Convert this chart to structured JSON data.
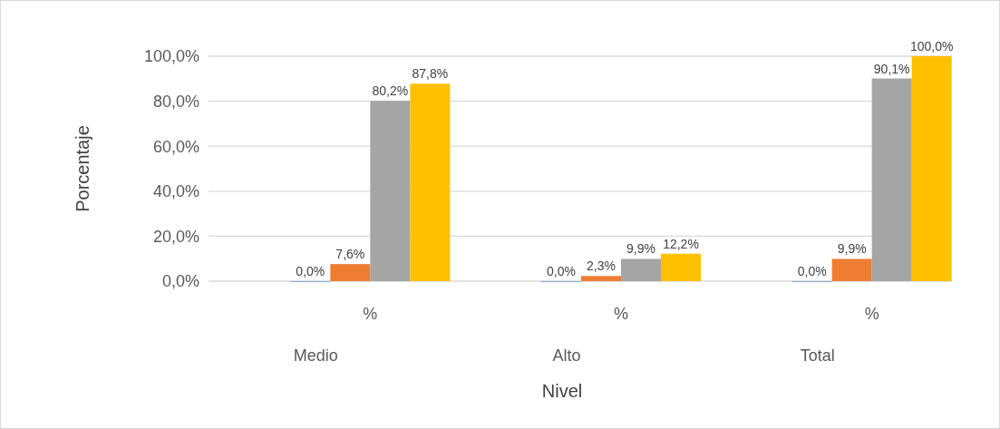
{
  "chart_data": {
    "type": "bar",
    "xlabel": "Nivel",
    "ylabel": "Porcentaje",
    "categories": [
      "Medio",
      "Alto",
      "Total"
    ],
    "annotations": [
      "%",
      "%",
      "%"
    ],
    "series": [
      {
        "color": "#2e75b6",
        "values": [
          0,
          0,
          0
        ],
        "value_labels": [
          "0,0%",
          "0,0%",
          "0,0%"
        ]
      },
      {
        "color": "#ed7d31",
        "values": [
          7.6,
          2.3,
          9.9
        ],
        "value_labels": [
          "7,6%",
          "2,3%",
          "9,9%"
        ]
      },
      {
        "color": "#a5a5a5",
        "values": [
          80.2,
          9.9,
          90.1
        ],
        "value_labels": [
          "80,2%",
          "9,9%",
          "90,1%"
        ]
      },
      {
        "color": "#ffc000",
        "values": [
          87.8,
          12.2,
          100
        ],
        "value_labels": [
          "87,8%",
          "12,2%",
          "100,0%"
        ]
      }
    ],
    "ylim": [
      0,
      100
    ],
    "yticks": [
      {
        "value": 0,
        "label": "0,0%"
      },
      {
        "value": 20,
        "label": "20,0%"
      },
      {
        "value": 40,
        "label": "40,0%"
      },
      {
        "value": 60,
        "label": "60,0%"
      },
      {
        "value": 80,
        "label": "80,0%"
      },
      {
        "value": 100,
        "label": "100,0%"
      }
    ],
    "grid": "y"
  }
}
